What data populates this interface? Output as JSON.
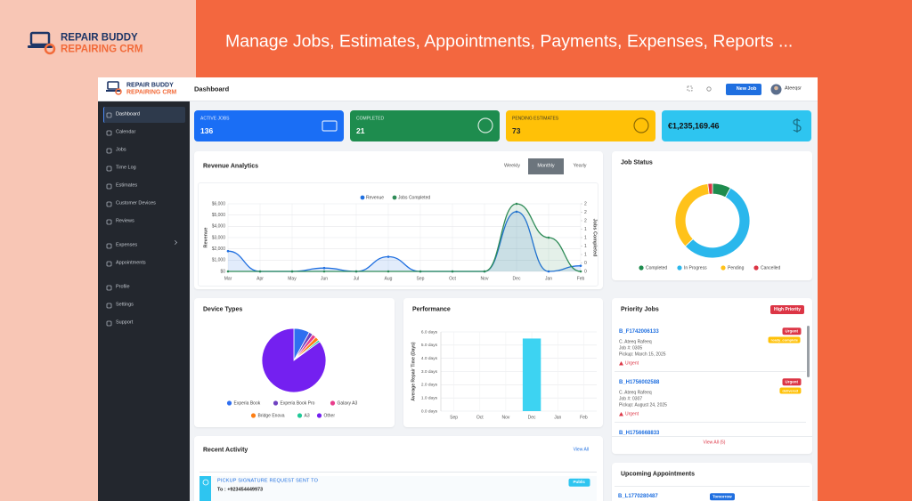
{
  "banner": {
    "logo_line1": "REPAIR BUDDY",
    "logo_line2": "REPAIRING CRM",
    "headline": "Manage Jobs, Estimates, Appointments, Payments, Expenses, Reports ..."
  },
  "app": {
    "logo_line1": "REPAIR BUDDY",
    "logo_line2": "REPAIRING CRM",
    "page_title": "Dashboard",
    "new_job": "New Job",
    "user": "Ateeqsr"
  },
  "sidebar": [
    "Dashboard",
    "Calendar",
    "Jobs",
    "Time Log",
    "Estimates",
    "Customer Devices",
    "Reviews",
    "Expenses",
    "Appointments",
    "Profile",
    "Settings",
    "Support"
  ],
  "stats": [
    {
      "label": "ACTIVE JOBS",
      "value": 136
    },
    {
      "label": "COMPLETED",
      "value": 21
    },
    {
      "label": "PENDING ESTIMATES",
      "value": 73
    },
    {
      "value": "€1,235,169.46"
    }
  ],
  "revenue_tabs": [
    "Weekly",
    "Monthly",
    "Yearly"
  ],
  "chart_data": [
    {
      "type": "line",
      "title": "Revenue Analytics",
      "categories": [
        "Mar",
        "Apr",
        "May",
        "Jun",
        "Jul",
        "Aug",
        "Sep",
        "Oct",
        "Nov",
        "Dec",
        "Jan",
        "Feb"
      ],
      "series": [
        {
          "name": "Revenue",
          "color": "#1f6fe0",
          "values": [
            1800,
            0,
            0,
            300,
            0,
            1300,
            0,
            0,
            0,
            5300,
            0,
            500
          ]
        },
        {
          "name": "Jobs Completed",
          "color": "#2e8b57",
          "axis": "y2",
          "values": [
            0,
            0,
            0,
            0,
            0,
            0,
            0,
            0,
            0,
            2,
            1,
            0
          ]
        }
      ],
      "ylabel": "Revenue",
      "y2label": "Jobs Completed",
      "ylim": [
        0,
        6000
      ],
      "yticks": [
        {
          "value": 0,
          "label": "$0"
        },
        {
          "value": 1000,
          "label": "$1,000"
        },
        {
          "value": 2000,
          "label": "$2,000"
        },
        {
          "value": 3000,
          "label": "$3,000"
        },
        {
          "value": 4000,
          "label": "$4,000"
        },
        {
          "value": 5000,
          "label": "$5,000"
        },
        {
          "value": 6000,
          "label": "$6,000"
        }
      ],
      "y2lim": [
        0,
        2
      ],
      "y2ticks": [
        0,
        {
          "value": 0.25,
          "label": "0"
        },
        {
          "value": 0.5,
          "label": "1"
        },
        {
          "value": 0.75,
          "label": "1"
        },
        1,
        {
          "value": 1.25,
          "label": "1"
        },
        {
          "value": 1.5,
          "label": "2"
        },
        {
          "value": 1.75,
          "label": "2"
        },
        2
      ],
      "grid": true,
      "legend": "top"
    },
    {
      "type": "doughnut",
      "title": "Job Status",
      "categories": [
        "Completed",
        "In Progress",
        "Pending",
        "Cancelled"
      ],
      "values": [
        8,
        55,
        35,
        2
      ],
      "colors": [
        "#1e8c4e",
        "#2ab7ec",
        "#ffc21a",
        "#dc3545"
      ],
      "legend": "bottom"
    },
    {
      "type": "pie",
      "title": "Device Types",
      "categories": [
        "Experia Book",
        "Experia Book Pro",
        "Galaxy A3",
        "Bridge Enova",
        "A3",
        "Other"
      ],
      "values": [
        8,
        2,
        2,
        2,
        1,
        85
      ],
      "colors": [
        "#2f6ff0",
        "#6f42c1",
        "#e83e8c",
        "#fd7e14",
        "#20c997",
        "#7420f0"
      ],
      "legend": "bottom"
    },
    {
      "type": "bar",
      "title": "Performance",
      "categories": [
        "Sep",
        "Oct",
        "Nov",
        "Dec",
        "Jan",
        "Feb"
      ],
      "values": [
        0,
        0,
        0,
        5.5,
        0,
        0
      ],
      "color": "#3dd3f2",
      "ylabel": "Average Repair Time (Days)",
      "ylim": [
        0,
        6
      ],
      "yticks": [
        {
          "value": 0,
          "label": "0.0 days"
        },
        {
          "value": 1,
          "label": "1.0 days"
        },
        {
          "value": 2,
          "label": "2.0 days"
        },
        {
          "value": 3,
          "label": "3.0 days"
        },
        {
          "value": 4,
          "label": "4.0 days"
        },
        {
          "value": 5,
          "label": "5.0 days"
        },
        {
          "value": 6,
          "label": "6.0 days"
        }
      ],
      "grid": true
    }
  ],
  "priority_jobs": {
    "title": "Priority Jobs",
    "badge": "High Priority",
    "items": [
      {
        "id": "B_F1742006133",
        "badge": "Urgent",
        "status": "ready_complete",
        "customer": "C. Ateeq Rafeeq",
        "job": "Job #: 0305",
        "pickup": "Pickup: March 15, 2025",
        "flag": "Urgent"
      },
      {
        "id": "B_H1756002588",
        "badge": "Urgent",
        "status": "delivered",
        "customer": "C. Ateeq Rafeeq",
        "job": "Job #: 0307",
        "pickup": "Pickup: August 24, 2025",
        "flag": "Urgent"
      },
      {
        "id": "B_H1756668833"
      }
    ],
    "view_all": "View All (5)"
  },
  "recent_activity": {
    "title": "Recent Activity",
    "view_all": "View All",
    "items": [
      {
        "title": "PICKUP SIGNATURE REQUEST SENT TO",
        "badge": "Public",
        "detail": "To : +923454449973"
      }
    ]
  },
  "upcoming": {
    "title": "Upcoming Appointments",
    "items": [
      {
        "id": "B_L1770280487",
        "badge": "Tomorrow"
      }
    ]
  }
}
